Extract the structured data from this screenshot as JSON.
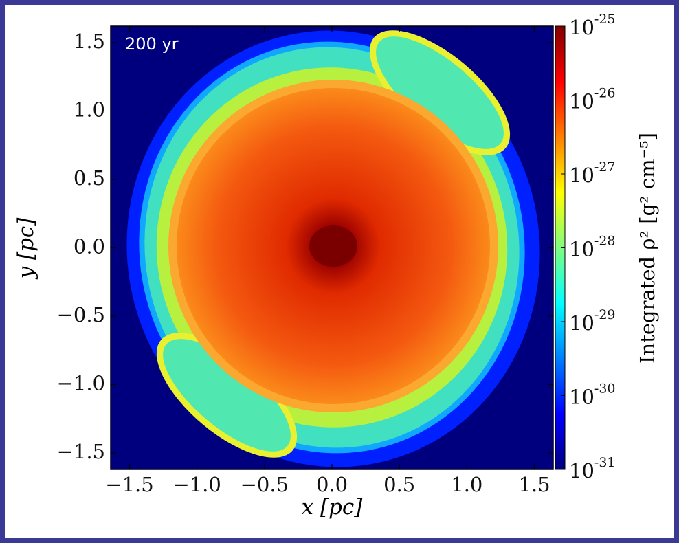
{
  "chart_data": {
    "type": "heatmap",
    "annotation": "200 yr",
    "xlabel": "x [pc]",
    "ylabel": "y [pc]",
    "colorbar_label": "Integrated ρ² [g² cm⁻⁵]",
    "colormap": "jet",
    "xlim": [
      -1.64,
      1.64
    ],
    "ylim": [
      -1.62,
      1.62
    ],
    "xticks": [
      {
        "value": -1.5,
        "label": "−1.5"
      },
      {
        "value": -1.0,
        "label": "−1.0"
      },
      {
        "value": -0.5,
        "label": "−0.5"
      },
      {
        "value": 0,
        "label": "0.0"
      },
      0.5,
      {
        "value": 1.0,
        "label": "1.0"
      },
      1.5
    ],
    "yticks": [
      {
        "value": -1.5,
        "label": "−1.5"
      },
      {
        "value": -1.0,
        "label": "−1.0"
      },
      {
        "value": -0.5,
        "label": "−0.5"
      },
      {
        "value": 0,
        "label": "0.0"
      },
      0.5,
      {
        "value": 1.0,
        "label": "1.0"
      },
      1.5
    ],
    "clim": [
      1e-31,
      1e-25
    ],
    "colorbar_log": true,
    "cticks": [
      {
        "value": 1e-31,
        "label": "10",
        "exponent": "-31"
      },
      {
        "value": 1e-30,
        "label": "10",
        "exponent": "-30"
      },
      {
        "value": 1e-29,
        "label": "10",
        "exponent": "-29"
      },
      {
        "value": 1e-28,
        "label": "10",
        "exponent": "-28"
      },
      {
        "value": 1e-27,
        "label": "10",
        "exponent": "-27"
      },
      {
        "value": 1e-26,
        "label": "10",
        "exponent": "-26"
      },
      {
        "value": 1e-25,
        "label": "10",
        "exponent": "-25"
      }
    ]
  }
}
